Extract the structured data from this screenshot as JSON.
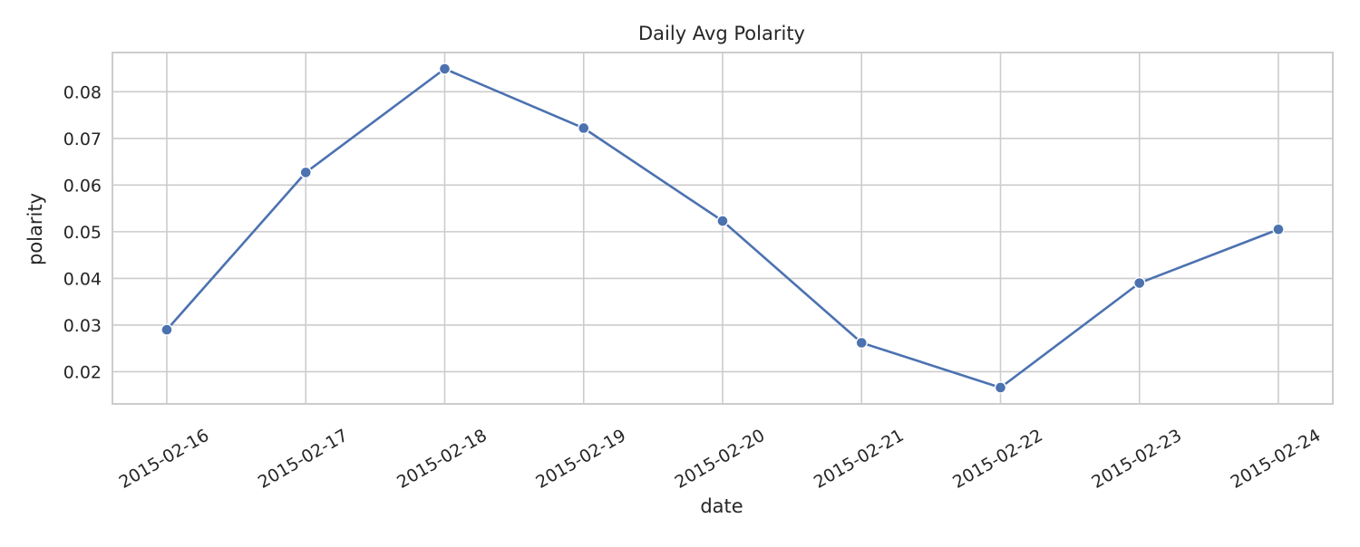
{
  "chart_data": {
    "type": "line",
    "title": "Daily Avg Polarity",
    "xlabel": "date",
    "ylabel": "polarity",
    "x": [
      "2015-02-16",
      "2015-02-17",
      "2015-02-18",
      "2015-02-19",
      "2015-02-20",
      "2015-02-21",
      "2015-02-22",
      "2015-02-23",
      "2015-02-24"
    ],
    "series": [
      {
        "values": [
          0.029,
          0.0627,
          0.0849,
          0.0722,
          0.0523,
          0.0262,
          0.0166,
          0.039,
          0.0505
        ],
        "color": "#4c72b0",
        "marker": "circle"
      }
    ],
    "yticks": [
      "0.02",
      "0.03",
      "0.04",
      "0.05",
      "0.06",
      "0.07",
      "0.08"
    ],
    "ylim": [
      0.0131,
      0.0884
    ],
    "grid": true,
    "legend": "none"
  }
}
